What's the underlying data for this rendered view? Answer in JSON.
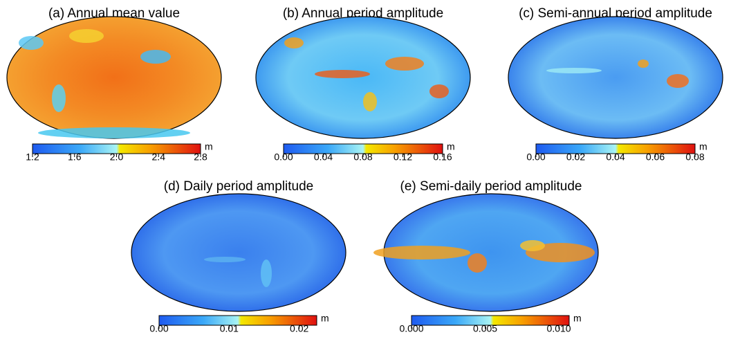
{
  "panels": [
    {
      "title": "(a) Annual mean value",
      "colorbar": {
        "unit": "m",
        "lim": [
          1.2,
          2.8
        ],
        "ticks": [
          1.2,
          1.6,
          {
            "value": 2,
            "label": "2.0"
          },
          2.4,
          2.8
        ]
      }
    },
    {
      "title": "(b) Annual period amplitude",
      "colorbar": {
        "unit": "m",
        "lim": [
          0,
          0.16
        ],
        "ticks": [
          {
            "value": 0,
            "label": "0.00"
          },
          0.04,
          {
            "value": 0.08,
            "label": "0.08"
          },
          0.12,
          {
            "value": 0.16,
            "label": "0.16"
          }
        ]
      }
    },
    {
      "title": "(c) Semi-annual period amplitude",
      "colorbar": {
        "unit": "m",
        "lim": [
          0,
          0.08
        ],
        "ticks": [
          {
            "value": 0,
            "label": "0.00"
          },
          {
            "value": 0.02,
            "label": "0.02"
          },
          {
            "value": 0.04,
            "label": "0.04"
          },
          {
            "value": 0.06,
            "label": "0.06"
          },
          {
            "value": 0.08,
            "label": "0.08"
          }
        ]
      }
    },
    {
      "title": "(d) Daily period amplitude",
      "colorbar": {
        "unit": "m",
        "lim": [
          0,
          0.0225
        ],
        "ticks": [
          {
            "value": 0,
            "label": "0.00"
          },
          0.01,
          0.02
        ]
      }
    },
    {
      "title": "(e) Semi-daily period amplitude",
      "colorbar": {
        "unit": "m",
        "lim": [
          0,
          0.0107
        ],
        "ticks": [
          {
            "value": 0,
            "label": "0.000"
          },
          0.005,
          {
            "value": 0.01,
            "label": "0.010"
          }
        ]
      }
    }
  ]
}
